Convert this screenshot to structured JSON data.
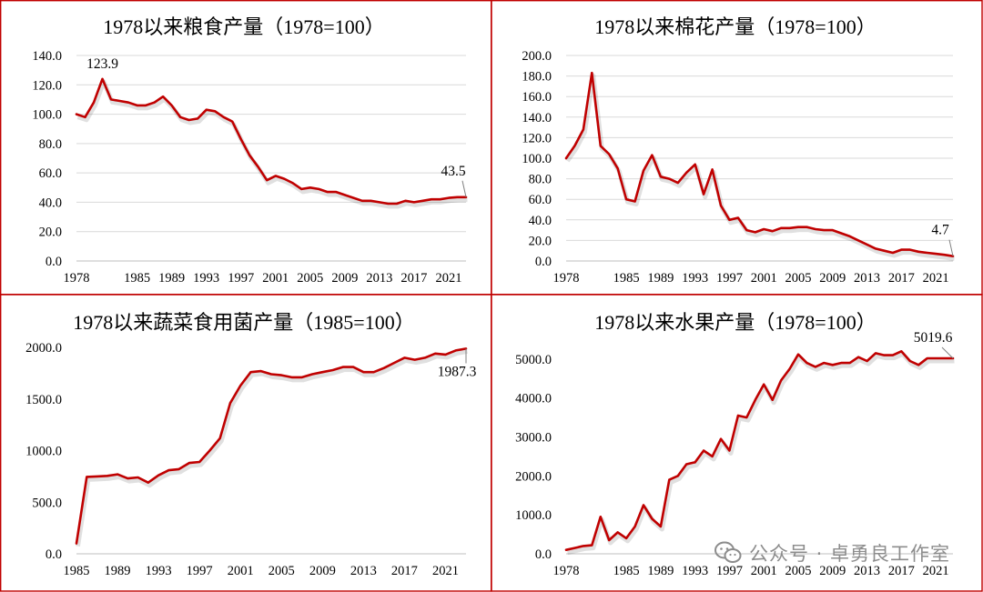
{
  "watermark": {
    "text": "公众号 · 卓勇良工作室",
    "icon": "wechat-icon"
  },
  "colors": {
    "series": "#c00000",
    "border": "#c00000",
    "grid": "#d9d9d9"
  },
  "chart_data": [
    {
      "type": "line",
      "title": "1978以来粮食产量（1978=100）",
      "x": [
        1978,
        1979,
        1980,
        1981,
        1982,
        1983,
        1984,
        1985,
        1986,
        1987,
        1988,
        1989,
        1990,
        1991,
        1992,
        1993,
        1994,
        1995,
        1996,
        1997,
        1998,
        1999,
        2000,
        2001,
        2002,
        2003,
        2004,
        2005,
        2006,
        2007,
        2008,
        2009,
        2010,
        2011,
        2012,
        2013,
        2014,
        2015,
        2016,
        2017,
        2018,
        2019,
        2020,
        2021,
        2022,
        2023
      ],
      "xticks": [
        "1978",
        "1985",
        "1989",
        "1993",
        "1997",
        "2001",
        "2005",
        "2009",
        "2013",
        "2017",
        "2021"
      ],
      "xtick_years": [
        1978,
        1985,
        1989,
        1993,
        1997,
        2001,
        2005,
        2009,
        2013,
        2017,
        2021
      ],
      "yticks": [
        "0.0",
        "20.0",
        "40.0",
        "60.0",
        "80.0",
        "100.0",
        "120.0",
        "140.0"
      ],
      "ylim": [
        0,
        140
      ],
      "series": [
        {
          "values": [
            100,
            98,
            108,
            124,
            110,
            109,
            108,
            106,
            106,
            108,
            112,
            106,
            98,
            96,
            97,
            103,
            102,
            98,
            95,
            83,
            72,
            64,
            55,
            58,
            56,
            53,
            49,
            50,
            49,
            47,
            47,
            45,
            43,
            41,
            41,
            40,
            39,
            39,
            41,
            40,
            41,
            42,
            42,
            43,
            43.5,
            43.5
          ]
        }
      ],
      "data_labels": [
        {
          "text": "123.9",
          "index": 3,
          "position": "above"
        },
        {
          "text": "43.5",
          "index": 45,
          "position": "above-left",
          "callout": true
        }
      ],
      "grid": true
    },
    {
      "type": "line",
      "title": "1978以来棉花产量（1978=100）",
      "x": [
        1978,
        1979,
        1980,
        1981,
        1982,
        1983,
        1984,
        1985,
        1986,
        1987,
        1988,
        1989,
        1990,
        1991,
        1992,
        1993,
        1994,
        1995,
        1996,
        1997,
        1998,
        1999,
        2000,
        2001,
        2002,
        2003,
        2004,
        2005,
        2006,
        2007,
        2008,
        2009,
        2010,
        2011,
        2012,
        2013,
        2014,
        2015,
        2016,
        2017,
        2018,
        2019,
        2020,
        2021,
        2022,
        2023
      ],
      "xticks": [
        "1978",
        "1985",
        "1989",
        "1993",
        "1997",
        "2001",
        "2005",
        "2009",
        "2013",
        "2017",
        "2021"
      ],
      "xtick_years": [
        1978,
        1985,
        1989,
        1993,
        1997,
        2001,
        2005,
        2009,
        2013,
        2017,
        2021
      ],
      "yticks": [
        "0.0",
        "20.0",
        "40.0",
        "60.0",
        "80.0",
        "100.0",
        "120.0",
        "140.0",
        "160.0",
        "180.0",
        "200.0"
      ],
      "ylim": [
        0,
        200
      ],
      "series": [
        {
          "values": [
            100,
            112,
            128,
            183,
            112,
            104,
            90,
            60,
            58,
            88,
            103,
            82,
            80,
            76,
            86,
            94,
            65,
            89,
            54,
            40,
            42,
            30,
            28,
            31,
            29,
            32,
            32,
            33,
            33,
            31,
            30,
            30,
            27,
            24,
            20,
            16,
            12,
            10,
            8,
            11,
            11,
            9,
            8,
            7,
            6,
            4.7
          ]
        }
      ],
      "data_labels": [
        {
          "text": "4.7",
          "index": 45,
          "position": "above-left",
          "callout": true
        }
      ],
      "grid": true
    },
    {
      "type": "line",
      "title": "1978以来蔬菜食用菌产量（1985=100）",
      "x": [
        1985,
        1986,
        1987,
        1988,
        1989,
        1990,
        1991,
        1992,
        1993,
        1994,
        1995,
        1996,
        1997,
        1998,
        1999,
        2000,
        2001,
        2002,
        2003,
        2004,
        2005,
        2006,
        2007,
        2008,
        2009,
        2010,
        2011,
        2012,
        2013,
        2014,
        2015,
        2016,
        2017,
        2018,
        2019,
        2020,
        2021,
        2022,
        2023
      ],
      "xticks": [
        "1985",
        "1989",
        "1993",
        "1997",
        "2001",
        "2005",
        "2009",
        "2013",
        "2017",
        "2021"
      ],
      "xtick_years": [
        1985,
        1989,
        1993,
        1997,
        2001,
        2005,
        2009,
        2013,
        2017,
        2021
      ],
      "yticks": [
        "0.0",
        "500.0",
        "1000.0",
        "1500.0",
        "2000.0"
      ],
      "ylim": [
        0,
        2000
      ],
      "series": [
        {
          "values": [
            100,
            745,
            750,
            755,
            770,
            730,
            740,
            690,
            760,
            810,
            820,
            880,
            890,
            1000,
            1120,
            1460,
            1630,
            1760,
            1770,
            1740,
            1730,
            1710,
            1710,
            1740,
            1760,
            1780,
            1810,
            1810,
            1760,
            1760,
            1800,
            1850,
            1900,
            1880,
            1900,
            1940,
            1930,
            1970,
            1987.3
          ]
        }
      ],
      "data_labels": [
        {
          "text": "1987.3",
          "index": 38,
          "position": "below-left",
          "callout": true
        }
      ],
      "grid": false
    },
    {
      "type": "line",
      "title": "1978以来水果产量（1978=100）",
      "x": [
        1978,
        1979,
        1980,
        1981,
        1982,
        1983,
        1984,
        1985,
        1986,
        1987,
        1988,
        1989,
        1990,
        1991,
        1992,
        1993,
        1994,
        1995,
        1996,
        1997,
        1998,
        1999,
        2000,
        2001,
        2002,
        2003,
        2004,
        2005,
        2006,
        2007,
        2008,
        2009,
        2010,
        2011,
        2012,
        2013,
        2014,
        2015,
        2016,
        2017,
        2018,
        2019,
        2020,
        2021,
        2022,
        2023
      ],
      "xticks": [
        "1978",
        "1985",
        "1989",
        "1993",
        "1997",
        "2001",
        "2005",
        "2009",
        "2013",
        "2017",
        "2021"
      ],
      "xtick_years": [
        1978,
        1985,
        1989,
        1993,
        1997,
        2001,
        2005,
        2009,
        2013,
        2017,
        2021
      ],
      "yticks": [
        "0.0",
        "1000.0",
        "2000.0",
        "3000.0",
        "4000.0",
        "5000.0"
      ],
      "ylim": [
        0,
        5300
      ],
      "series": [
        {
          "values": [
            100,
            150,
            200,
            220,
            950,
            350,
            550,
            400,
            700,
            1250,
            900,
            700,
            1900,
            2000,
            2300,
            2350,
            2650,
            2500,
            2950,
            2650,
            3550,
            3500,
            3950,
            4350,
            3950,
            4450,
            4750,
            5120,
            4900,
            4800,
            4900,
            4850,
            4900,
            4900,
            5050,
            4950,
            5150,
            5100,
            5100,
            5200,
            4950,
            4850,
            5019.6,
            5019.6,
            5019.6,
            5019.6
          ]
        }
      ],
      "data_labels": [
        {
          "text": "5019.6",
          "index": 45,
          "position": "above",
          "callout": true
        }
      ],
      "grid": false
    }
  ]
}
